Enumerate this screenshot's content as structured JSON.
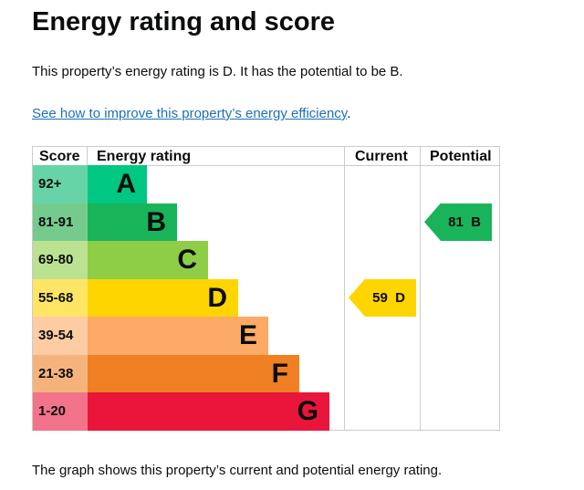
{
  "title": "Energy rating and score",
  "summary": "This property’s energy rating is D. It has the potential to be B.",
  "link": "See how to improve this property’s energy efficiency",
  "link_suffix": ".",
  "headers": {
    "score": "Score",
    "rating": "Energy rating",
    "current": "Current",
    "potential": "Potential"
  },
  "bands": [
    {
      "score": "92+",
      "letter": "A",
      "color": "#00c781",
      "light": "#66d4a7"
    },
    {
      "score": "81-91",
      "letter": "B",
      "color": "#19b459",
      "light": "#75cb8d"
    },
    {
      "score": "69-80",
      "letter": "C",
      "color": "#8dce46",
      "light": "#bbe290"
    },
    {
      "score": "55-68",
      "letter": "D",
      "color": "#ffd500",
      "light": "#ffe566"
    },
    {
      "score": "39-54",
      "letter": "E",
      "color": "#fcaa65",
      "light": "#fdcca3"
    },
    {
      "score": "21-38",
      "letter": "F",
      "color": "#ef8023",
      "light": "#f5b37b"
    },
    {
      "score": "1-20",
      "letter": "G",
      "color": "#e9153b",
      "light": "#f2738a"
    }
  ],
  "current": {
    "score": "59",
    "letter": "D",
    "label": "59  D"
  },
  "potential": {
    "score": "81",
    "letter": "B",
    "label": "81  B"
  },
  "footer": "The graph shows this property’s current and potential energy rating."
}
